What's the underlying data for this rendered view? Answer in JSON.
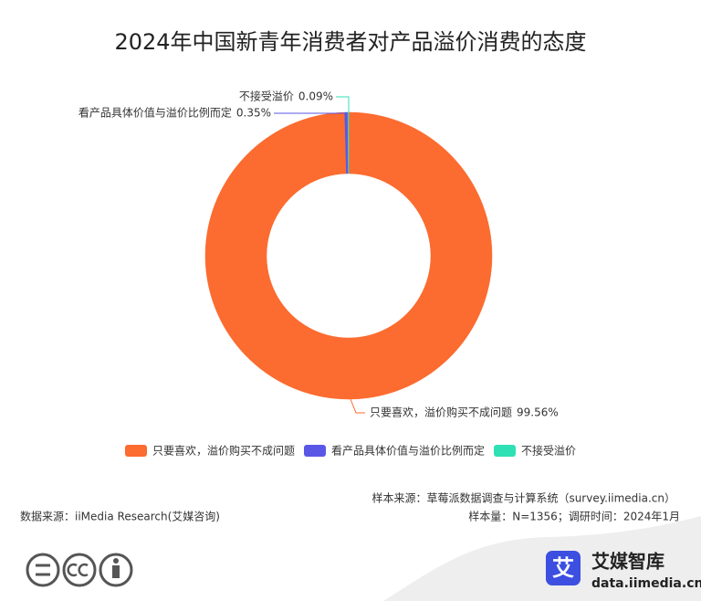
{
  "chart_data": {
    "type": "donut",
    "title": "2024年中国新青年消费者对产品溢价消费的态度",
    "categories": [
      "只要喜欢，溢价购买不成问题",
      "看产品具体价值与溢价比例而定",
      "不接受溢价"
    ],
    "values": [
      99.56,
      0.35,
      0.09
    ],
    "value_labels": [
      "99.56%",
      "0.35%",
      "0.09%"
    ],
    "colors": [
      "#fc6b2f",
      "#5b57e6",
      "#2fe0b5"
    ],
    "legend": "bottom"
  },
  "footer": {
    "sample_source": "样本来源：草莓派数据调查与计算系统（survey.iimedia.cn）",
    "data_source": "数据来源：iiMedia Research(艾媒咨询)",
    "sample_size": "样本量：N=1356；调研时间：2024年1月"
  },
  "logo": {
    "icon": "艾",
    "name": "艾媒智库",
    "url": "data.iimedia.cn"
  }
}
